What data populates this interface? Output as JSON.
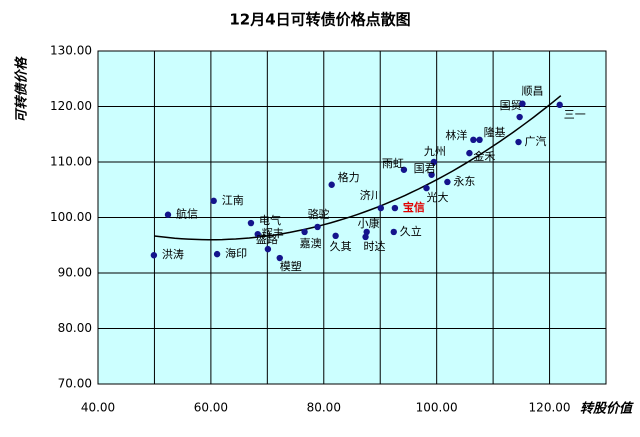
{
  "chart_data": {
    "type": "scatter",
    "title": "12月4日可转债价格点散图",
    "x_label": "转股价值",
    "y_label": "可转债价格",
    "labels": [
      "洪涛",
      "航信",
      "江南",
      "海印",
      "电气",
      "辉丰",
      "盛路",
      "模塑",
      "嘉澳",
      "骆驼",
      "格力",
      "久其",
      "济川",
      "小康",
      "时达",
      "宝信",
      "久立",
      "雨虹",
      "九州",
      "国君",
      "光大",
      "永东",
      "林洋",
      "隆基",
      "金禾",
      "国贸",
      "顺昌",
      "广汽",
      "三一"
    ],
    "x": [
      49.9,
      52.4,
      60.5,
      61.1,
      67.1,
      68.3,
      70.1,
      72.2,
      76.6,
      78.9,
      81.4,
      82.1,
      90.1,
      87.6,
      87.4,
      92.6,
      92.4,
      94.2,
      99.5,
      99.1,
      98.2,
      101.9,
      106.5,
      107.6,
      105.8,
      114.7,
      115.2,
      114.5,
      121.8
    ],
    "values": [
      93.2,
      100.5,
      103.0,
      93.4,
      99.0,
      97.0,
      94.3,
      92.7,
      97.4,
      98.3,
      105.9,
      96.7,
      101.7,
      97.4,
      96.5,
      101.7,
      97.4,
      108.6,
      110.0,
      107.7,
      105.3,
      106.4,
      114.0,
      114.0,
      111.6,
      118.1,
      120.5,
      113.6,
      120.3
    ],
    "color": "#14148c",
    "highlight": {
      "index": 15,
      "color": "#e00000"
    },
    "trendline": {
      "coefficients": [
        0.00675,
        -0.81,
        120.3
      ],
      "xrange": [
        50,
        122
      ],
      "color": "#000000"
    },
    "xlim": [
      40,
      130
    ],
    "xticks": [
      {
        "value": 40,
        "label": "40.00"
      },
      {
        "value": 60,
        "label": "60.00"
      },
      {
        "value": 80,
        "label": "80.00"
      },
      {
        "value": 100,
        "label": "100.00"
      },
      {
        "value": 120,
        "label": "120.00"
      }
    ],
    "xminor": [
      50,
      70,
      90,
      110,
      130
    ],
    "ylim": [
      70,
      130
    ],
    "yticks": [
      {
        "value": 70,
        "label": "70.00"
      },
      {
        "value": 80,
        "label": "80.00"
      },
      {
        "value": 90,
        "label": "90.00"
      },
      {
        "value": 100,
        "label": "100.00"
      },
      {
        "value": 110,
        "label": "110.00"
      },
      {
        "value": 120,
        "label": "120.00"
      },
      {
        "value": 130,
        "label": "130.00"
      }
    ],
    "grid": true,
    "background": "#ccffff"
  }
}
